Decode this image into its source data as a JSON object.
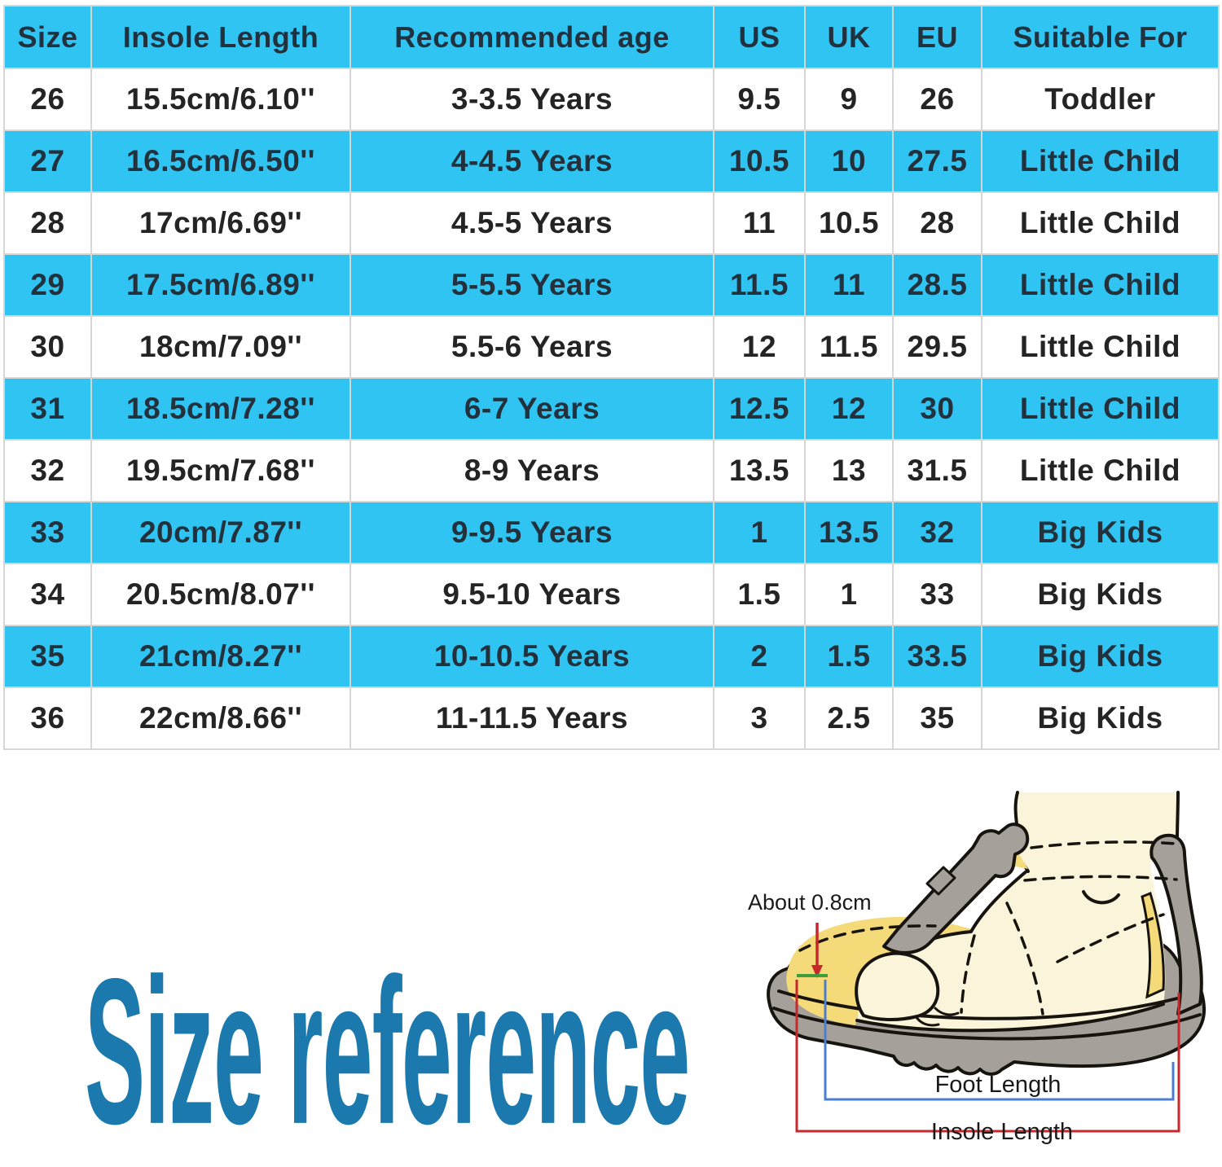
{
  "table": {
    "columns": [
      "Size",
      "Insole Length",
      "Recommended age",
      "US",
      "UK",
      "EU",
      "Suitable For"
    ],
    "rows": [
      [
        "26",
        "15.5cm/6.10''",
        "3-3.5 Years",
        "9.5",
        "9",
        "26",
        "Toddler"
      ],
      [
        "27",
        "16.5cm/6.50''",
        "4-4.5 Years",
        "10.5",
        "10",
        "27.5",
        "Little Child"
      ],
      [
        "28",
        "17cm/6.69''",
        "4.5-5 Years",
        "11",
        "10.5",
        "28",
        "Little Child"
      ],
      [
        "29",
        "17.5cm/6.89''",
        "5-5.5 Years",
        "11.5",
        "11",
        "28.5",
        "Little Child"
      ],
      [
        "30",
        "18cm/7.09''",
        "5.5-6 Years",
        "12",
        "11.5",
        "29.5",
        "Little Child"
      ],
      [
        "31",
        "18.5cm/7.28''",
        "6-7 Years",
        "12.5",
        "12",
        "30",
        "Little Child"
      ],
      [
        "32",
        "19.5cm/7.68''",
        "8-9 Years",
        "13.5",
        "13",
        "31.5",
        "Little Child"
      ],
      [
        "33",
        "20cm/7.87''",
        "9-9.5 Years",
        "1",
        "13.5",
        "32",
        "Big Kids"
      ],
      [
        "34",
        "20.5cm/8.07''",
        "9.5-10 Years",
        "1.5",
        "1",
        "33",
        "Big Kids"
      ],
      [
        "35",
        "21cm/8.27''",
        "10-10.5 Years",
        "2",
        "1.5",
        "33.5",
        "Big Kids"
      ],
      [
        "36",
        "22cm/8.66''",
        "11-11.5 Years",
        "3",
        "2.5",
        "35",
        "Big Kids"
      ]
    ]
  },
  "section_title": "Size reference",
  "diagram": {
    "gap_label": "About 0.8cm",
    "foot_length_label": "Foot Length",
    "insole_length_label": "Insole Length"
  },
  "colors": {
    "row_highlight": "#30c4f2",
    "title_blue": "#1c79ad",
    "arrow_red": "#c8272c",
    "bracket_blue": "#4a7fd0",
    "gap_green": "#3f9c3c"
  }
}
